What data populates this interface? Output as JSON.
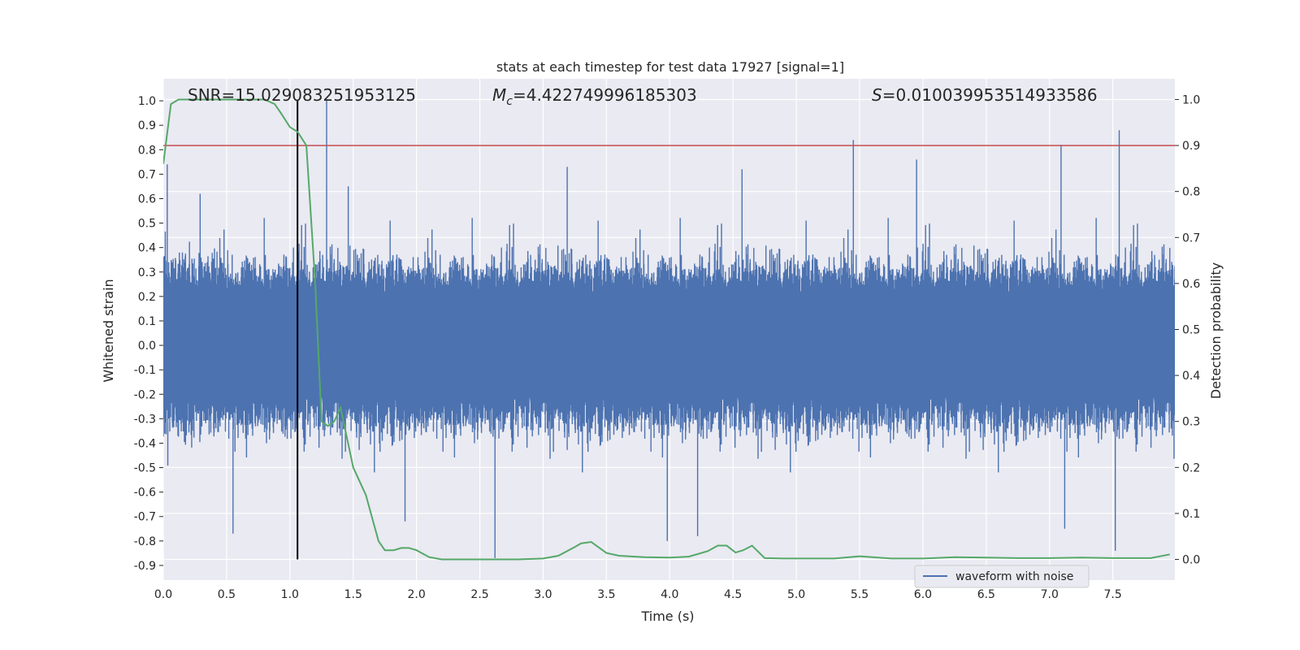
{
  "chart_data": {
    "type": "line",
    "title": "stats at each timestep for test data 17927 [signal=1]",
    "xlabel": "Time (s)",
    "ylabel_left": "Whitened strain",
    "ylabel_right": "Detection probability",
    "xlim": [
      0.0,
      7.99
    ],
    "ylim_left": [
      -0.96,
      1.09
    ],
    "ylim_right": [
      -0.045,
      1.045
    ],
    "x_ticks": [
      "0.0",
      "0.5",
      "1.0",
      "1.5",
      "2.0",
      "2.5",
      "3.0",
      "3.5",
      "4.0",
      "4.5",
      "5.0",
      "5.5",
      "6.0",
      "6.5",
      "7.0",
      "7.5"
    ],
    "y_ticks_left": [
      "1.0",
      "0.9",
      "0.8",
      "0.7",
      "0.6",
      "0.5",
      "0.4",
      "0.3",
      "0.2",
      "0.1",
      "0.0",
      "-0.1",
      "-0.2",
      "-0.3",
      "-0.4",
      "-0.5",
      "-0.6",
      "-0.7",
      "-0.8",
      "-0.9"
    ],
    "y_ticks_right": [
      "1.0",
      "0.9",
      "0.8",
      "0.7",
      "0.6",
      "0.5",
      "0.4",
      "0.3",
      "0.2",
      "0.1",
      "0.0"
    ],
    "grid": true,
    "legend_position": "lower-right",
    "annotations": {
      "snr": "SNR=15.029083251953125",
      "mc_symbol": "M",
      "mc_sub": "c",
      "mc_value": "=4.422749996185303",
      "s_symbol": "S",
      "s_value": "=0.010039953514933586"
    },
    "threshold_right": 0.9,
    "marker_time": 1.06,
    "series": [
      {
        "name": "waveform with noise",
        "color": "#4c72b0",
        "axis": "left",
        "description_values": {
          "time_range": [
            0.0,
            7.99
          ],
          "envelope_upper_typical": 0.5,
          "envelope_lower_typical": -0.5,
          "spikes": [
            {
              "x": 0.03,
              "y": 0.74
            },
            {
              "x": 0.29,
              "y": 0.62
            },
            {
              "x": 0.55,
              "y": -0.77
            },
            {
              "x": 1.29,
              "y": 1.0
            },
            {
              "x": 1.46,
              "y": 0.65
            },
            {
              "x": 1.91,
              "y": -0.72
            },
            {
              "x": 2.62,
              "y": -0.87
            },
            {
              "x": 3.19,
              "y": 0.73
            },
            {
              "x": 3.98,
              "y": -0.8
            },
            {
              "x": 4.22,
              "y": -0.78
            },
            {
              "x": 4.57,
              "y": 0.72
            },
            {
              "x": 5.45,
              "y": 0.84
            },
            {
              "x": 5.95,
              "y": 0.76
            },
            {
              "x": 7.12,
              "y": -0.75
            },
            {
              "x": 7.09,
              "y": 0.82
            },
            {
              "x": 7.55,
              "y": 0.88
            },
            {
              "x": 7.52,
              "y": -0.84
            }
          ]
        }
      },
      {
        "name": "",
        "color": "#55a868",
        "axis": "right",
        "x": [
          0.0,
          0.06,
          0.12,
          0.2,
          0.4,
          0.6,
          0.8,
          0.88,
          0.93,
          1.0,
          1.06,
          1.13,
          1.2,
          1.25,
          1.3,
          1.35,
          1.4,
          1.5,
          1.6,
          1.7,
          1.75,
          1.82,
          1.88,
          1.94,
          2.0,
          2.1,
          2.2,
          2.4,
          2.6,
          2.8,
          3.0,
          3.12,
          3.25,
          3.3,
          3.38,
          3.5,
          3.6,
          3.8,
          4.0,
          4.15,
          4.3,
          4.38,
          4.45,
          4.52,
          4.58,
          4.65,
          4.75,
          4.9,
          5.1,
          5.3,
          5.5,
          5.75,
          6.0,
          6.25,
          6.5,
          6.75,
          7.0,
          7.25,
          7.5,
          7.8,
          7.95
        ],
        "values": [
          0.86,
          0.99,
          1.0,
          1.0,
          1.0,
          1.0,
          1.0,
          0.99,
          0.97,
          0.94,
          0.93,
          0.9,
          0.6,
          0.3,
          0.29,
          0.3,
          0.33,
          0.2,
          0.14,
          0.04,
          0.02,
          0.02,
          0.025,
          0.025,
          0.02,
          0.005,
          0.0,
          0.0,
          0.0,
          0.0,
          0.002,
          0.008,
          0.027,
          0.035,
          0.038,
          0.014,
          0.008,
          0.005,
          0.004,
          0.006,
          0.018,
          0.03,
          0.03,
          0.015,
          0.02,
          0.03,
          0.003,
          0.002,
          0.002,
          0.002,
          0.007,
          0.002,
          0.002,
          0.005,
          0.004,
          0.003,
          0.003,
          0.004,
          0.003,
          0.003,
          0.011
        ]
      }
    ]
  }
}
